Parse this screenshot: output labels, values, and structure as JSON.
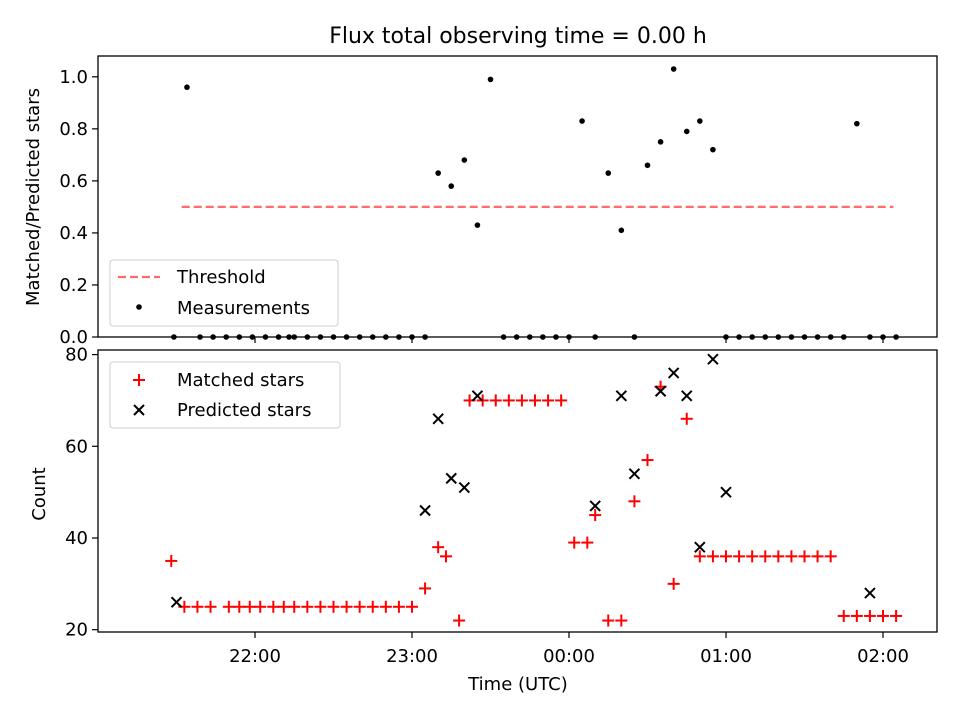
{
  "title": "Flux total observing time = 0.00 h",
  "xlabel": "Time (UTC)",
  "x_ticks": [
    "22:00",
    "23:00",
    "00:00",
    "01:00",
    "02:00"
  ],
  "colors": {
    "threshold": "#ff6b6b",
    "measurement": "#000000",
    "matched": "#ff0000",
    "predicted": "#000000"
  },
  "chart_data": [
    {
      "type": "scatter",
      "ylabel": "Matched/Predicted stars",
      "ylim": [
        0,
        1.08
      ],
      "y_ticks": [
        "0.0",
        "0.2",
        "0.4",
        "0.6",
        "0.8",
        "1.0"
      ],
      "legend_position": "lower-left",
      "series": [
        {
          "name": "Threshold",
          "style": "dashed-line",
          "x": [
            "21:32",
            "02:04"
          ],
          "y": [
            0.5,
            0.5
          ]
        },
        {
          "name": "Measurements",
          "style": "dot",
          "x": [
            "21:29",
            "21:34",
            "21:39",
            "21:44",
            "21:49",
            "21:54",
            "21:59",
            "22:04",
            "22:09",
            "22:13",
            "22:15",
            "22:20",
            "22:25",
            "22:30",
            "22:35",
            "22:40",
            "22:45",
            "22:50",
            "22:55",
            "23:00",
            "23:05",
            "23:10",
            "23:15",
            "23:20",
            "23:25",
            "23:30",
            "23:35",
            "23:40",
            "23:45",
            "23:50",
            "23:55",
            "00:00",
            "00:05",
            "00:10",
            "00:15",
            "00:20",
            "00:25",
            "00:30",
            "00:35",
            "00:40",
            "00:45",
            "00:50",
            "00:55",
            "01:00",
            "01:05",
            "01:10",
            "01:15",
            "01:20",
            "01:25",
            "01:30",
            "01:35",
            "01:40",
            "01:45",
            "01:50",
            "01:55",
            "02:00",
            "02:05"
          ],
          "y": [
            0,
            0.96,
            0,
            0,
            0,
            0,
            0,
            0,
            0,
            0,
            0,
            0,
            0,
            0,
            0,
            0,
            0,
            0,
            0,
            0,
            0,
            0.63,
            0.58,
            0.68,
            0.43,
            0.99,
            0,
            0,
            0,
            0,
            0,
            0,
            0.83,
            0,
            0.63,
            0.41,
            0,
            0.66,
            0.75,
            1.03,
            0.79,
            0.83,
            0.72,
            0,
            0,
            0,
            0,
            0,
            0,
            0,
            0,
            0,
            0,
            0.82,
            0,
            0,
            0
          ]
        }
      ]
    },
    {
      "type": "scatter",
      "ylabel": "Count",
      "ylim": [
        19.5,
        81
      ],
      "y_ticks": [
        "20",
        "40",
        "60",
        "80"
      ],
      "legend_position": "upper-left",
      "series": [
        {
          "name": "Matched stars",
          "marker": "+",
          "x": [
            "21:28",
            "21:33",
            "21:38",
            "21:43",
            "21:50",
            "21:54",
            "21:58",
            "22:02",
            "22:07",
            "22:11",
            "22:15",
            "22:20",
            "22:25",
            "22:30",
            "22:35",
            "22:40",
            "22:45",
            "22:50",
            "22:55",
            "23:00",
            "23:05",
            "23:10",
            "23:13",
            "23:18",
            "23:22",
            "23:27",
            "23:32",
            "23:37",
            "23:42",
            "23:47",
            "23:52",
            "23:57",
            "00:02",
            "00:07",
            "00:10",
            "00:15",
            "00:20",
            "00:25",
            "00:30",
            "00:35",
            "00:40",
            "00:45",
            "00:50",
            "00:55",
            "01:00",
            "01:05",
            "01:10",
            "01:15",
            "01:20",
            "01:25",
            "01:30",
            "01:35",
            "01:40",
            "01:45",
            "01:50",
            "01:55",
            "02:00",
            "02:05"
          ],
          "y": [
            35,
            25,
            25,
            25,
            25,
            25,
            25,
            25,
            25,
            25,
            25,
            25,
            25,
            25,
            25,
            25,
            25,
            25,
            25,
            25,
            29,
            38,
            36,
            22,
            70,
            70,
            70,
            70,
            70,
            70,
            70,
            70,
            39,
            39,
            45,
            22,
            22,
            48,
            57,
            73,
            30,
            66,
            36,
            36,
            36,
            36,
            36,
            36,
            36,
            36,
            36,
            36,
            36,
            23,
            23,
            23,
            23,
            23
          ]
        },
        {
          "name": "Predicted stars",
          "marker": "x",
          "x": [
            "21:30",
            "23:05",
            "23:10",
            "23:15",
            "23:20",
            "23:25",
            "00:10",
            "00:20",
            "00:25",
            "00:35",
            "00:40",
            "00:45",
            "00:50",
            "00:55",
            "01:00",
            "01:55"
          ],
          "y": [
            26,
            46,
            66,
            53,
            51,
            71,
            47,
            71,
            54,
            72,
            76,
            71,
            38,
            79,
            50,
            28
          ]
        }
      ]
    }
  ]
}
